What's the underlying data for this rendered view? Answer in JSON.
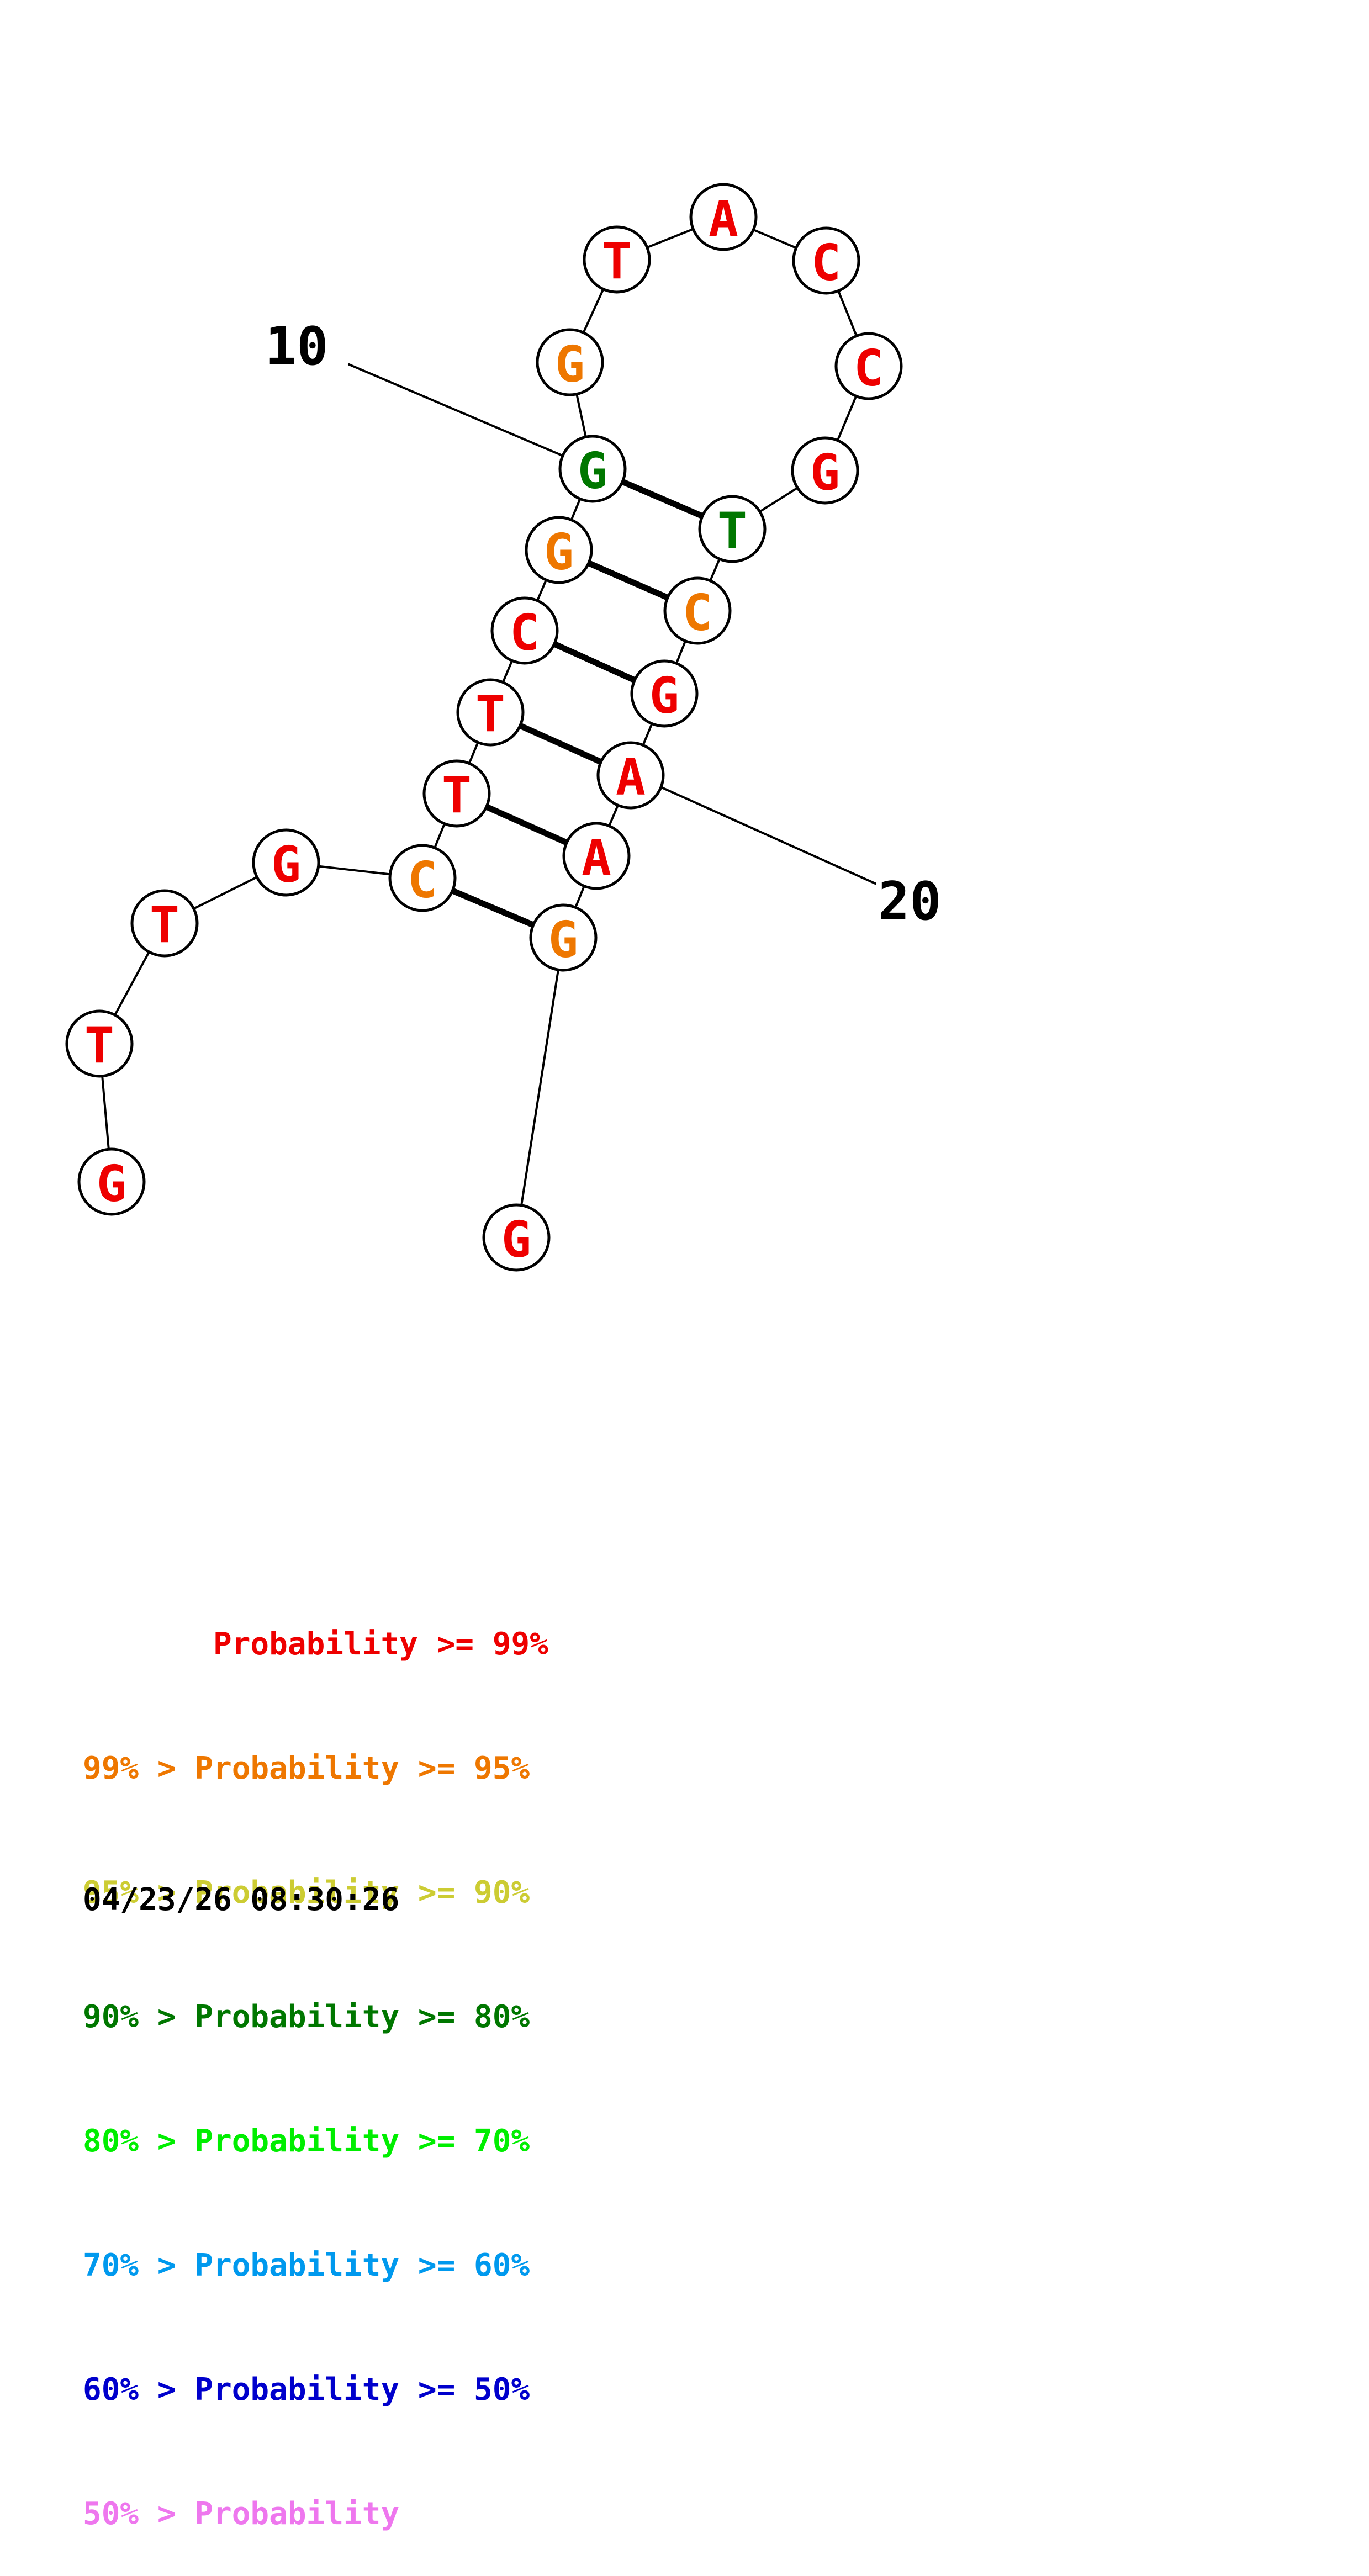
{
  "colors": {
    "p99": "#ee0000",
    "p95": "#ee7700",
    "p90": "#cccc33",
    "p80": "#007700",
    "p70": "#00ee00",
    "p60": "#0099ee",
    "p50": "#0000cc",
    "plow": "#ee77ee"
  },
  "structure": {
    "nucleotides": [
      {
        "index": 1,
        "base": "G",
        "prob_class": "p99"
      },
      {
        "index": 2,
        "base": "T",
        "prob_class": "p99"
      },
      {
        "index": 3,
        "base": "T",
        "prob_class": "p99"
      },
      {
        "index": 4,
        "base": "G",
        "prob_class": "p99"
      },
      {
        "index": 5,
        "base": "C",
        "prob_class": "p95"
      },
      {
        "index": 6,
        "base": "T",
        "prob_class": "p99"
      },
      {
        "index": 7,
        "base": "T",
        "prob_class": "p99"
      },
      {
        "index": 8,
        "base": "C",
        "prob_class": "p99"
      },
      {
        "index": 9,
        "base": "G",
        "prob_class": "p95"
      },
      {
        "index": 10,
        "base": "G",
        "prob_class": "p80"
      },
      {
        "index": 11,
        "base": "G",
        "prob_class": "p95"
      },
      {
        "index": 12,
        "base": "T",
        "prob_class": "p99"
      },
      {
        "index": 13,
        "base": "A",
        "prob_class": "p99"
      },
      {
        "index": 14,
        "base": "C",
        "prob_class": "p99"
      },
      {
        "index": 15,
        "base": "C",
        "prob_class": "p99"
      },
      {
        "index": 16,
        "base": "G",
        "prob_class": "p99"
      },
      {
        "index": 17,
        "base": "T",
        "prob_class": "p80"
      },
      {
        "index": 18,
        "base": "C",
        "prob_class": "p95"
      },
      {
        "index": 19,
        "base": "G",
        "prob_class": "p99"
      },
      {
        "index": 20,
        "base": "A",
        "prob_class": "p99"
      },
      {
        "index": 21,
        "base": "A",
        "prob_class": "p99"
      },
      {
        "index": 22,
        "base": "G",
        "prob_class": "p95"
      },
      {
        "index": 23,
        "base": "G",
        "prob_class": "p99"
      }
    ],
    "pairs": [
      [
        5,
        22
      ],
      [
        6,
        21
      ],
      [
        7,
        20
      ],
      [
        8,
        19
      ],
      [
        9,
        18
      ],
      [
        10,
        17
      ]
    ],
    "index_labels": [
      {
        "index": 10,
        "text": "10"
      },
      {
        "index": 20,
        "text": "20"
      }
    ]
  },
  "legend": [
    {
      "text": "       Probability >= 99%",
      "color_key": "p99"
    },
    {
      "text": "99% > Probability >= 95%",
      "color_key": "p95"
    },
    {
      "text": "95% > Probability >= 90%",
      "color_key": "p90"
    },
    {
      "text": "90% > Probability >= 80%",
      "color_key": "p80"
    },
    {
      "text": "80% > Probability >= 70%",
      "color_key": "p70"
    },
    {
      "text": "70% > Probability >= 60%",
      "color_key": "p60"
    },
    {
      "text": "60% > Probability >= 50%",
      "color_key": "p50"
    },
    {
      "text": "50% > Probability",
      "color_key": "plow"
    }
  ],
  "timestamp": "04/23/26 08:30:26"
}
